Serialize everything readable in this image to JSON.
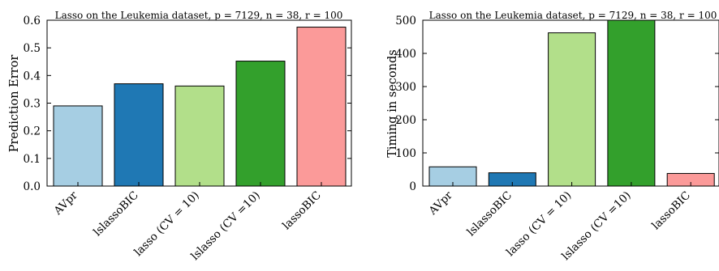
{
  "chart_data": [
    {
      "type": "bar",
      "title": "Lasso on the Leukemia dataset, p = 7129, n = 38, r = 100",
      "xlabel": "",
      "ylabel": "Prediction Error",
      "categories": [
        "AVpr",
        "lslassoBIC",
        "lasso (CV = 10)",
        "lslasso (CV =10)",
        "lassoBIC"
      ],
      "values": [
        0.29,
        0.37,
        0.362,
        0.452,
        0.575
      ],
      "colors": [
        "#a6cee3",
        "#1f78b4",
        "#b2df8a",
        "#33a02c",
        "#fb9a99"
      ],
      "ylim": [
        0,
        0.6
      ],
      "yticks": [
        "0.0",
        "0.1",
        "0.2",
        "0.3",
        "0.4",
        "0.5",
        "0.6"
      ],
      "grid": false
    },
    {
      "type": "bar",
      "title": "Lasso on the Leukemia dataset, p = 7129, n = 38, r = 100",
      "xlabel": "",
      "ylabel": "Timing in seconds",
      "categories": [
        "AVpr",
        "lslassoBIC",
        "lasso (CV = 10)",
        "lslasso (CV =10)",
        "lassoBIC"
      ],
      "values": [
        58,
        40,
        462,
        500,
        38
      ],
      "colors": [
        "#a6cee3",
        "#1f78b4",
        "#b2df8a",
        "#33a02c",
        "#fb9a99"
      ],
      "ylim": [
        0,
        500
      ],
      "yticks": [
        "0",
        "100",
        "200",
        "300",
        "400",
        "500"
      ],
      "grid": false
    }
  ]
}
